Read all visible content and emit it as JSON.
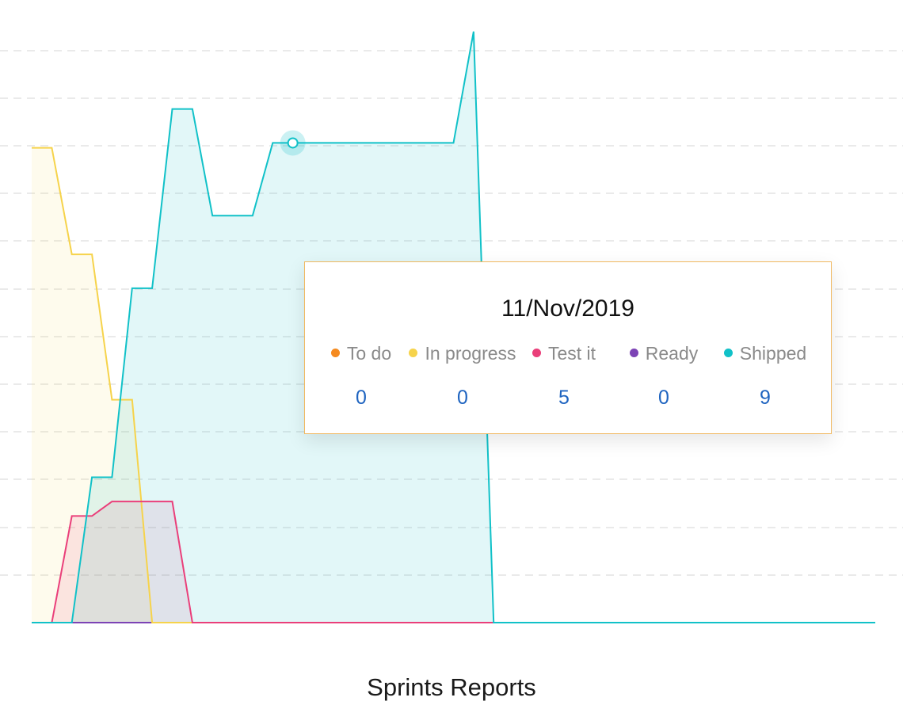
{
  "chart_data": {
    "type": "area",
    "title": "Sprints Reports",
    "xlabel": "",
    "ylabel": "",
    "ylim": [
      0,
      12
    ],
    "grid": true,
    "x": [
      0,
      0.5,
      1,
      1.5,
      2,
      2.5,
      3,
      3.5,
      4,
      4.5,
      5,
      5.5,
      6,
      6.5,
      7,
      7.5,
      8,
      8.5,
      9,
      9.5,
      10,
      10.5,
      11,
      11.5,
      12,
      12.5,
      13,
      13.5,
      14,
      14.5,
      15,
      15.5,
      16,
      16.5,
      17,
      17.5,
      18,
      18.5,
      19,
      19.5,
      20,
      20.5,
      21
    ],
    "series": [
      {
        "name": "To do",
        "color": "#f58a1f",
        "values": [
          0,
          0,
          0,
          0,
          0,
          0,
          0,
          0,
          0,
          0,
          0,
          0,
          0,
          0,
          0,
          0,
          0,
          0,
          0,
          0,
          0,
          0,
          0,
          0,
          0,
          0,
          0,
          0,
          0,
          0,
          0,
          0,
          0,
          0,
          0,
          0,
          0,
          0,
          0,
          0,
          0,
          0,
          0
        ]
      },
      {
        "name": "In progress",
        "color": "#f6d34b",
        "values": [
          9.8,
          9.8,
          7.6,
          7.6,
          4.6,
          4.6,
          0,
          0,
          0,
          0,
          0,
          0,
          0,
          0,
          0,
          0,
          0,
          0,
          0,
          0,
          0,
          0,
          0,
          0,
          0,
          0,
          0,
          0,
          0,
          0,
          0,
          0,
          0,
          0,
          0,
          0,
          0,
          0,
          0,
          0,
          0,
          0,
          0
        ]
      },
      {
        "name": "Test it",
        "color": "#ea3f7a",
        "values": [
          0,
          0,
          2.2,
          2.2,
          2.5,
          2.5,
          2.5,
          2.5,
          0,
          0,
          0,
          0,
          0,
          0,
          0,
          0,
          0,
          0,
          0,
          0,
          0,
          0,
          0,
          0,
          0,
          0,
          0,
          0,
          0,
          0,
          0,
          0,
          0,
          0,
          0,
          0,
          0,
          0,
          0,
          0,
          0,
          0,
          0
        ]
      },
      {
        "name": "Ready",
        "color": "#7c43b5",
        "values": [
          0,
          0,
          0,
          0,
          0,
          0,
          0,
          0,
          0,
          0,
          0,
          0,
          0,
          0,
          0,
          0,
          0,
          0,
          0,
          0,
          0,
          0,
          0,
          0,
          0,
          0,
          0,
          0,
          0,
          0,
          0,
          0,
          0,
          0,
          0,
          0,
          0,
          0,
          0,
          0,
          0,
          0,
          0
        ]
      },
      {
        "name": "Shipped",
        "color": "#11c1c8",
        "values": [
          0,
          0,
          0,
          3,
          3,
          6.9,
          6.9,
          10.6,
          10.6,
          8.4,
          8.4,
          8.4,
          9.9,
          9.9,
          9.9,
          9.9,
          9.9,
          9.9,
          9.9,
          9.9,
          9.9,
          9.9,
          12.2,
          0,
          0,
          0,
          0,
          0,
          0,
          0,
          0,
          0,
          0,
          0,
          0,
          0,
          0,
          0,
          0,
          0,
          0,
          0,
          0
        ]
      }
    ],
    "tooltip": {
      "date": "11/Nov/2019",
      "items": [
        {
          "name": "To do",
          "value": "0",
          "color": "#f58a1f"
        },
        {
          "name": "In progress",
          "value": "0",
          "color": "#f6d34b"
        },
        {
          "name": "Test it",
          "value": "5",
          "color": "#ea3f7a"
        },
        {
          "name": "Ready",
          "value": "0",
          "color": "#7c43b5"
        },
        {
          "name": "Shipped",
          "value": "9",
          "color": "#11c1c8"
        }
      ]
    }
  }
}
